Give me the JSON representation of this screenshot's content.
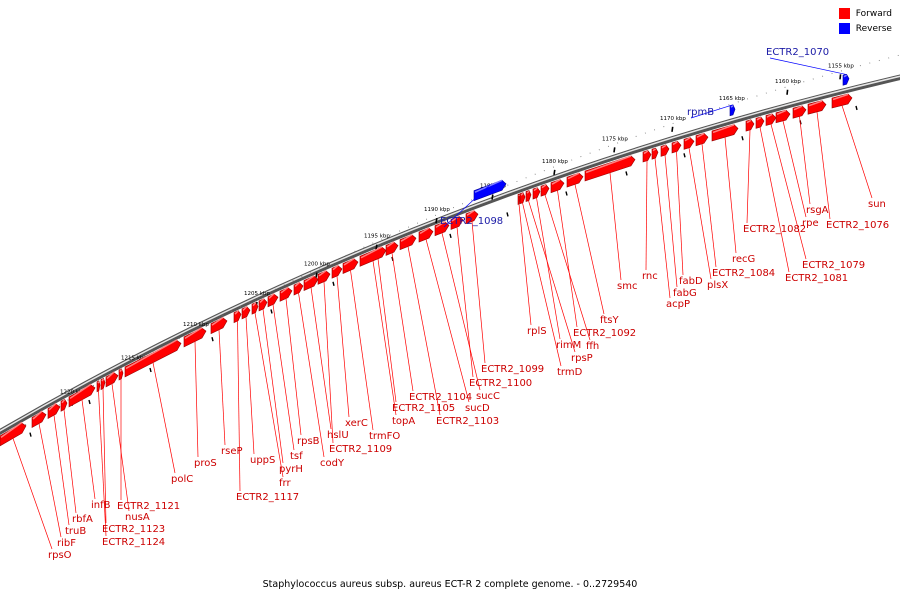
{
  "legend": {
    "forward_label": "Forward",
    "reverse_label": "Reverse",
    "forward_color": "#ff0000",
    "reverse_color": "#0000ff"
  },
  "caption": "Staphylococcus aureus subsp. aureus ECT-R 2 complete genome. - 0..2729540",
  "scale": {
    "unit": "kbp",
    "ticks": [
      1155,
      1160,
      1165,
      1170,
      1175,
      1180,
      1185,
      1190,
      1195,
      1200,
      1205,
      1210,
      1215,
      1220
    ]
  },
  "genes": [
    {
      "name": "sun",
      "strand": "forward"
    },
    {
      "name": "ECTR2_1076",
      "strand": "forward"
    },
    {
      "name": "rsgA",
      "strand": "forward"
    },
    {
      "name": "rpe",
      "strand": "forward"
    },
    {
      "name": "ECTR2_1079",
      "strand": "forward"
    },
    {
      "name": "ECTR2_1081",
      "strand": "forward"
    },
    {
      "name": "ECTR2_1082",
      "strand": "forward"
    },
    {
      "name": "recG",
      "strand": "forward"
    },
    {
      "name": "ECTR2_1084",
      "strand": "forward"
    },
    {
      "name": "plsX",
      "strand": "forward"
    },
    {
      "name": "fabD",
      "strand": "forward"
    },
    {
      "name": "fabG",
      "strand": "forward"
    },
    {
      "name": "acpP",
      "strand": "forward"
    },
    {
      "name": "rnc",
      "strand": "forward"
    },
    {
      "name": "smc",
      "strand": "forward"
    },
    {
      "name": "ftsY",
      "strand": "forward"
    },
    {
      "name": "ECTR2_1092",
      "strand": "forward"
    },
    {
      "name": "ffh",
      "strand": "forward"
    },
    {
      "name": "rimM",
      "strand": "forward"
    },
    {
      "name": "rpsP",
      "strand": "forward"
    },
    {
      "name": "trmD",
      "strand": "forward"
    },
    {
      "name": "rplS",
      "strand": "forward"
    },
    {
      "name": "ECTR2_1099",
      "strand": "forward"
    },
    {
      "name": "ECTR2_1100",
      "strand": "forward"
    },
    {
      "name": "sucC",
      "strand": "forward"
    },
    {
      "name": "sucD",
      "strand": "forward"
    },
    {
      "name": "ECTR2_1103",
      "strand": "forward"
    },
    {
      "name": "ECTR2_1104",
      "strand": "forward"
    },
    {
      "name": "ECTR2_1105",
      "strand": "forward"
    },
    {
      "name": "topA",
      "strand": "forward"
    },
    {
      "name": "trmFO",
      "strand": "forward"
    },
    {
      "name": "xerC",
      "strand": "forward"
    },
    {
      "name": "ECTR2_1109",
      "strand": "forward"
    },
    {
      "name": "hslU",
      "strand": "forward"
    },
    {
      "name": "codY",
      "strand": "forward"
    },
    {
      "name": "rpsB",
      "strand": "forward"
    },
    {
      "name": "tsf",
      "strand": "forward"
    },
    {
      "name": "pyrH",
      "strand": "forward"
    },
    {
      "name": "frr",
      "strand": "forward"
    },
    {
      "name": "uppS",
      "strand": "forward"
    },
    {
      "name": "ECTR2_1117",
      "strand": "forward"
    },
    {
      "name": "rseP",
      "strand": "forward"
    },
    {
      "name": "proS",
      "strand": "forward"
    },
    {
      "name": "polC",
      "strand": "forward"
    },
    {
      "name": "ECTR2_1121",
      "strand": "forward"
    },
    {
      "name": "nusA",
      "strand": "forward"
    },
    {
      "name": "ECTR2_1123",
      "strand": "forward"
    },
    {
      "name": "ECTR2_1124",
      "strand": "forward"
    },
    {
      "name": "infB",
      "strand": "forward"
    },
    {
      "name": "rbfA",
      "strand": "forward"
    },
    {
      "name": "truB",
      "strand": "forward"
    },
    {
      "name": "ribF",
      "strand": "forward"
    },
    {
      "name": "rpsO",
      "strand": "forward"
    },
    {
      "name": "ECTR2_1070",
      "strand": "reverse"
    },
    {
      "name": "rpmB",
      "strand": "reverse"
    },
    {
      "name": "ECTR2_1098",
      "strand": "reverse"
    }
  ]
}
